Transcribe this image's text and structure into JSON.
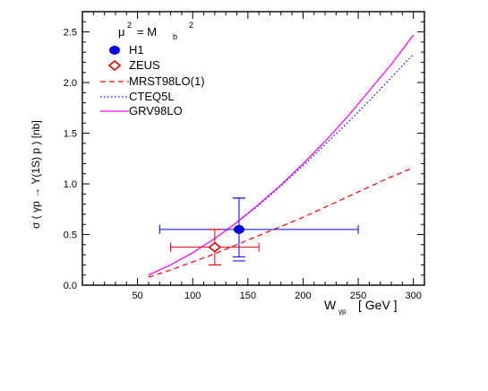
{
  "chart_data": {
    "type": "line",
    "xlabel": "W",
    "xlabel_sub": "γp",
    "xlabel_unit": "[ GeV ]",
    "ylabel": "σ ( γp → Υ(1S) p ) [nb]",
    "xlim": [
      0,
      310
    ],
    "ylim": [
      0,
      2.7
    ],
    "x_ticks": [
      50,
      100,
      150,
      200,
      250,
      300
    ],
    "y_ticks": [
      0.0,
      0.5,
      1.0,
      1.5,
      2.0,
      2.5
    ],
    "x_tick_labels": [
      "50",
      "100",
      "150",
      "200",
      "250",
      "300"
    ],
    "y_tick_labels": [
      "0.0",
      "0.5",
      "1.0",
      "1.5",
      "2.0",
      "2.5"
    ],
    "annotation": {
      "mu": "μ",
      "eq": "= M",
      "sub": "b",
      "sup": "2"
    },
    "legend_position": "top-left",
    "points": [
      {
        "name": "H1",
        "x": 142,
        "y": 0.55,
        "x_err": [
          72,
          108
        ],
        "y_err_stat": [
          0.31,
          0.31
        ],
        "y_err_total": [
          0.27,
          0.31
        ],
        "color": "#0000dd",
        "marker": "filled-circle"
      },
      {
        "name": "ZEUS",
        "x": 120,
        "y": 0.375,
        "x_err": [
          40,
          40
        ],
        "y_err_stat": [
          0.175,
          0.175
        ],
        "y_err_total": [
          0.175,
          0.175
        ],
        "color": "#dd0000",
        "marker": "open-diamond"
      }
    ],
    "series": [
      {
        "name": "MRST98LO(1)",
        "color": "#ff0000",
        "style": "dashed",
        "x": [
          60,
          80,
          100,
          120,
          140,
          160,
          180,
          200,
          220,
          240,
          260,
          280,
          300
        ],
        "y": [
          0.08,
          0.15,
          0.23,
          0.31,
          0.4,
          0.49,
          0.58,
          0.67,
          0.77,
          0.87,
          0.97,
          1.07,
          1.16
        ]
      },
      {
        "name": "CTEQ5L",
        "color": "#0000ff",
        "style": "dotted",
        "x": [
          60,
          80,
          100,
          120,
          140,
          160,
          180,
          200,
          220,
          240,
          260,
          280,
          300
        ],
        "y": [
          0.1,
          0.2,
          0.32,
          0.46,
          0.62,
          0.79,
          0.98,
          1.18,
          1.39,
          1.6,
          1.82,
          2.05,
          2.28
        ]
      },
      {
        "name": "GRV98LO",
        "color": "#ff00ff",
        "style": "solid",
        "x": [
          60,
          80,
          100,
          120,
          140,
          160,
          180,
          200,
          220,
          240,
          260,
          280,
          300
        ],
        "y": [
          0.1,
          0.2,
          0.32,
          0.46,
          0.62,
          0.8,
          0.99,
          1.2,
          1.42,
          1.66,
          1.92,
          2.18,
          2.47
        ]
      }
    ]
  }
}
